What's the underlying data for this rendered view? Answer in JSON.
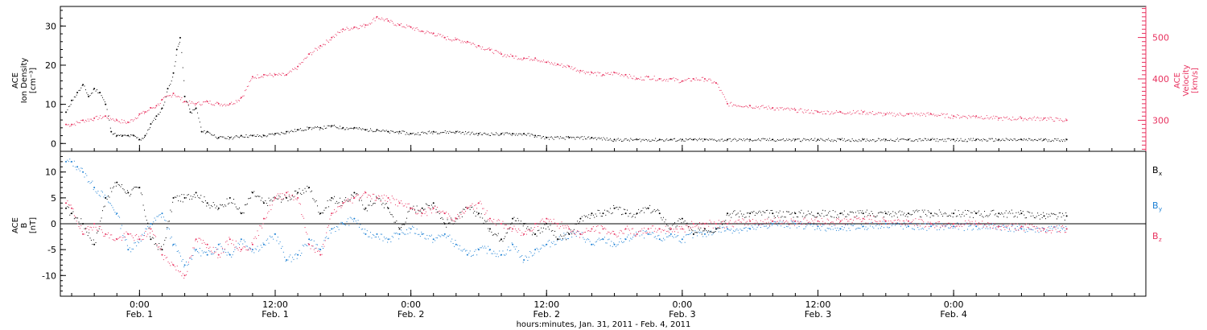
{
  "chart_data": [
    {
      "type": "scatter",
      "title": "",
      "ylabel_left": [
        "ACE",
        "Ion Density",
        "[cm⁻³]"
      ],
      "ylabel_right": [
        "ACE",
        "Velocity",
        "[km/s]"
      ],
      "xlim_hours": [
        -7,
        89
      ],
      "ylim_left": [
        -2,
        35
      ],
      "ylim_right": [
        225,
        575
      ],
      "yticks_left": [
        "0",
        "10",
        "20",
        "30"
      ],
      "yticks_right": [
        "300",
        "400",
        "500"
      ],
      "series": [
        {
          "name": "Ion Density",
          "axis": "left",
          "color": "#000000",
          "x": [
            -6.5,
            -6,
            -5.5,
            -5,
            -4.5,
            -4,
            -3.5,
            -3,
            -2.5,
            -2,
            -1.5,
            -1,
            -0.5,
            0,
            0.5,
            1,
            1.5,
            2,
            2.5,
            3,
            3.3,
            3.6,
            4,
            4.5,
            5,
            5.5,
            6,
            7,
            8,
            9,
            10,
            11,
            12,
            13,
            14,
            15,
            16,
            17,
            18,
            19,
            20,
            21,
            22,
            23,
            24,
            26,
            28,
            30,
            32,
            33,
            34,
            35,
            36,
            38,
            40,
            42,
            44,
            46,
            47,
            48,
            49,
            50,
            52,
            54,
            56,
            58,
            60,
            62,
            64,
            66,
            68,
            70,
            72,
            74,
            76,
            78,
            80,
            82
          ],
          "y": [
            8,
            11,
            13,
            15,
            12,
            14,
            13,
            10,
            3,
            2,
            2,
            2,
            2,
            1,
            2,
            5,
            7,
            9,
            14,
            18,
            24,
            27,
            12,
            8,
            9,
            3,
            3,
            1.5,
            1.5,
            2,
            2,
            2,
            2.5,
            3,
            3.5,
            4,
            4,
            4.5,
            4,
            4,
            3.5,
            3.5,
            3,
            3,
            2.5,
            3,
            3,
            2.5,
            2.5,
            2.5,
            2.5,
            2,
            1.5,
            1.5,
            1.5,
            1,
            1,
            1,
            1,
            1,
            1,
            1,
            1,
            1,
            1,
            1,
            1,
            1,
            1,
            1,
            1,
            1,
            1,
            1,
            1,
            1,
            1,
            1
          ]
        },
        {
          "name": "Velocity",
          "axis": "right",
          "color": "#e8325f",
          "x": [
            -6.5,
            -6,
            -5,
            -4,
            -3,
            -2,
            -1,
            0,
            0.5,
            1,
            1.5,
            2,
            3,
            4,
            5,
            6,
            7,
            8,
            9,
            10,
            11,
            12,
            13,
            14,
            15,
            16,
            17,
            18,
            19,
            20,
            21,
            22,
            23,
            24,
            25,
            26,
            27,
            28,
            29,
            30,
            31,
            32,
            33,
            34,
            35,
            36,
            37,
            38,
            39,
            40,
            41,
            42,
            43,
            44,
            45,
            46,
            47,
            48,
            49,
            50,
            51,
            52,
            54,
            56,
            58,
            60,
            62,
            64,
            66,
            68,
            70,
            72,
            74,
            76,
            78,
            80,
            82
          ],
          "y": [
            290,
            290,
            300,
            305,
            310,
            300,
            295,
            315,
            320,
            330,
            335,
            350,
            365,
            345,
            340,
            345,
            340,
            340,
            355,
            405,
            410,
            410,
            410,
            430,
            460,
            480,
            500,
            520,
            525,
            530,
            550,
            540,
            530,
            525,
            515,
            510,
            500,
            495,
            490,
            480,
            470,
            460,
            455,
            450,
            450,
            440,
            435,
            430,
            420,
            415,
            410,
            415,
            410,
            400,
            405,
            400,
            400,
            395,
            400,
            400,
            390,
            340,
            335,
            330,
            325,
            320,
            320,
            320,
            315,
            315,
            315,
            310,
            310,
            305,
            305,
            305,
            300
          ]
        }
      ]
    },
    {
      "type": "scatter",
      "title": "",
      "ylabel_left": [
        "ACE",
        "B",
        "[nT]"
      ],
      "xlim_hours": [
        -7,
        89
      ],
      "ylim": [
        -14,
        14
      ],
      "yticks": [
        "-10",
        "-5",
        "0",
        "5",
        "10"
      ],
      "xtick_labels": [
        {
          "time": "0:00",
          "date": "Feb. 1"
        },
        {
          "time": "12:00",
          "date": "Feb. 1"
        },
        {
          "time": "0:00",
          "date": "Feb. 2"
        },
        {
          "time": "12:00",
          "date": "Feb. 2"
        },
        {
          "time": "0:00",
          "date": "Feb. 3"
        },
        {
          "time": "12:00",
          "date": "Feb. 3"
        },
        {
          "time": "0:00",
          "date": "Feb. 4"
        }
      ],
      "xlabel": "hours:minutes, Jan. 31, 2011 - Feb.  4, 2011",
      "series": [
        {
          "name": "Bx",
          "color": "#000000",
          "x": [
            -6.5,
            -6,
            -5,
            -4,
            -3,
            -2,
            -1,
            0,
            1,
            2,
            3,
            4,
            5,
            6,
            7,
            8,
            9,
            10,
            11,
            12,
            13,
            14,
            15,
            16,
            17,
            18,
            19,
            20,
            21,
            22,
            23,
            24,
            25,
            26,
            27,
            28,
            29,
            30,
            31,
            32,
            33,
            34,
            35,
            36,
            37,
            38,
            39,
            40,
            41,
            42,
            43,
            44,
            45,
            46,
            47,
            48,
            49,
            50,
            51,
            52,
            54,
            56,
            58,
            60,
            62,
            64,
            66,
            68,
            70,
            72,
            74,
            76,
            78,
            80,
            82
          ],
          "y": [
            3,
            2,
            0,
            -4,
            5,
            8,
            6,
            7,
            -3,
            -5,
            5,
            5,
            6,
            4,
            3,
            5,
            2,
            6,
            4,
            5,
            5,
            6,
            7,
            2,
            5,
            4,
            6,
            3,
            5,
            3,
            -1,
            3,
            3,
            4,
            0,
            1,
            3,
            2,
            -1,
            -3,
            1,
            0,
            -2,
            0,
            -3,
            -2,
            1,
            2,
            2,
            3,
            2,
            2,
            3,
            2,
            -1,
            1,
            -2,
            -1,
            -1,
            2,
            2,
            2,
            2,
            2,
            2,
            2,
            2,
            2,
            2,
            2,
            2,
            2,
            2,
            1.5,
            1.5
          ]
        },
        {
          "name": "By",
          "color": "#1a7fd4",
          "x": [
            -6.5,
            -6,
            -5.5,
            -5,
            -4,
            -3,
            -2,
            -1,
            0,
            1,
            2,
            3,
            4,
            5,
            6,
            7,
            8,
            9,
            10,
            11,
            12,
            13,
            14,
            15,
            16,
            17,
            18,
            19,
            20,
            21,
            22,
            23,
            24,
            25,
            26,
            27,
            28,
            29,
            30,
            31,
            32,
            33,
            34,
            35,
            36,
            37,
            38,
            39,
            40,
            41,
            42,
            43,
            44,
            45,
            46,
            47,
            48,
            49,
            50,
            51,
            52,
            54,
            56,
            58,
            60,
            62,
            64,
            66,
            68,
            70,
            72,
            74,
            76,
            78,
            80,
            82
          ],
          "y": [
            12,
            12,
            11,
            10,
            7,
            5,
            2,
            -5,
            -3,
            0,
            2,
            -4,
            -8,
            -5,
            -6,
            -4,
            -6,
            -3,
            -5,
            -4,
            -2,
            -7,
            -6,
            -3,
            -5,
            -1,
            0,
            1,
            -2,
            -2,
            -3,
            -2,
            -1,
            -2,
            -3,
            -2,
            -4,
            -6,
            -5,
            -5,
            -6,
            -4,
            -7,
            -5,
            -4,
            -3,
            -2,
            -2,
            -4,
            -3,
            -4,
            -3,
            -2,
            -2,
            -3,
            -2,
            -3,
            -2,
            -2,
            -1,
            -1,
            -1,
            0,
            0,
            -0.5,
            -1,
            -0.5,
            0,
            -0.5,
            -0.5,
            -0.5,
            -0.5,
            -0.5,
            -1,
            -1,
            -1
          ]
        },
        {
          "name": "Bz",
          "color": "#e8325f",
          "x": [
            -6.5,
            -6,
            -5,
            -4,
            -3,
            -2,
            -1,
            0,
            1,
            2,
            3,
            4,
            5,
            6,
            7,
            8,
            9,
            10,
            11,
            12,
            13,
            14,
            15,
            16,
            17,
            18,
            19,
            20,
            21,
            22,
            23,
            24,
            25,
            26,
            27,
            28,
            29,
            30,
            31,
            32,
            33,
            34,
            35,
            36,
            37,
            38,
            39,
            40,
            41,
            42,
            43,
            44,
            45,
            46,
            47,
            48,
            49,
            50,
            51,
            52,
            54,
            56,
            58,
            60,
            62,
            64,
            66,
            68,
            70,
            72,
            74,
            76,
            78,
            80,
            82
          ],
          "y": [
            4,
            3,
            -2,
            0,
            -2,
            -3,
            -2,
            -3,
            -1,
            -6,
            -8,
            -10,
            -3,
            -4,
            -6,
            -3,
            -5,
            -4,
            1,
            5,
            6,
            5,
            -4,
            -6,
            2,
            4,
            5,
            6,
            5,
            5,
            4,
            3,
            2,
            3,
            2,
            1,
            3,
            4,
            1,
            0,
            -1,
            -2,
            0,
            1,
            0,
            -1,
            -2,
            -1,
            -1,
            -2,
            -1,
            -2,
            -1,
            -1,
            -1,
            -1,
            0,
            0,
            0,
            0,
            0.5,
            0.5,
            0.5,
            0.5,
            0.5,
            1,
            0.5,
            0.5,
            0,
            0,
            0,
            -0.5,
            -0.5,
            -1,
            -1
          ]
        }
      ],
      "legend": [
        {
          "label": "B",
          "sub": "x",
          "color": "#000000"
        },
        {
          "label": "B",
          "sub": "y",
          "color": "#1a7fd4"
        },
        {
          "label": "B",
          "sub": "z",
          "color": "#e8325f"
        }
      ]
    }
  ]
}
